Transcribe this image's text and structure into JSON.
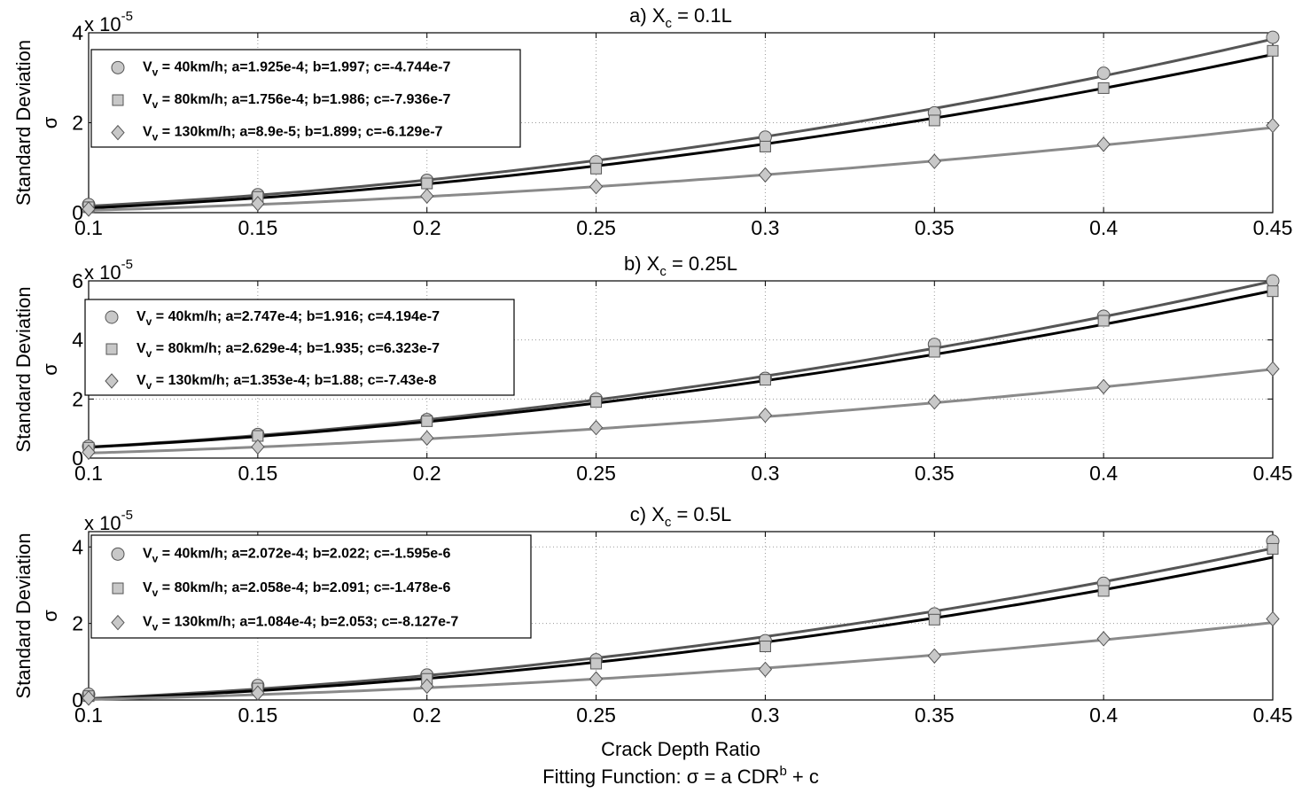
{
  "figure": {
    "xlabel": "Crack Depth Ratio",
    "footer": "Fitting Function: σ = a CDR",
    "footer_sup": "b",
    "footer_tail": " + c",
    "ylabel": "Standard Deviation",
    "ysymbol": "σ",
    "exp_base": "x 10",
    "exp_power": "-5"
  },
  "styles": {
    "series_colors": [
      "#555555",
      "#000000",
      "#8a8a8a"
    ],
    "marker_fill": "#c8c8c8",
    "marker_stroke": "#555555",
    "grid_color": "#9a9a9a"
  },
  "chart_data": [
    {
      "type": "line",
      "title_prefix": "a) X",
      "title_sub": "c",
      "title_suffix": " = 0.1L",
      "x": [
        0.1,
        0.15,
        0.2,
        0.25,
        0.3,
        0.35,
        0.4,
        0.45
      ],
      "xticks": [
        "0.1",
        "0.15",
        "0.2",
        "0.25",
        "0.3",
        "0.35",
        "0.4",
        "0.45"
      ],
      "xlim": [
        0.1,
        0.45
      ],
      "ylim": [
        0,
        4
      ],
      "yticks": [
        0,
        2,
        4
      ],
      "y_exponent": -5,
      "series": [
        {
          "label_pre": "V",
          "label_sub": "v",
          "label_post": " = 40km/h; a=1.925e-4; b=1.997; c=-4.744e-7",
          "marker": "circle",
          "a": 0.0001925,
          "b": 1.997,
          "c": -4.744e-07,
          "values": [
            0.18,
            0.4,
            0.72,
            1.13,
            1.68,
            2.22,
            3.1,
            3.9
          ]
        },
        {
          "label_pre": "V",
          "label_sub": "v",
          "label_post": " = 80km/h; a=1.756e-4; b=1.986; c=-7.936e-7",
          "marker": "square",
          "a": 0.0001756,
          "b": 1.986,
          "c": -7.936e-07,
          "values": [
            0.12,
            0.35,
            0.65,
            0.98,
            1.47,
            2.05,
            2.77,
            3.6
          ]
        },
        {
          "label_pre": "V",
          "label_sub": "v",
          "label_post": " = 130km/h; a=8.9e-5; b=1.899; c=-6.129e-7",
          "marker": "diamond",
          "a": 8.9e-05,
          "b": 1.899,
          "c": -6.129e-07,
          "values": [
            0.08,
            0.2,
            0.37,
            0.58,
            0.84,
            1.14,
            1.52,
            1.94
          ]
        }
      ]
    },
    {
      "type": "line",
      "title_prefix": "b) X",
      "title_sub": "c",
      "title_suffix": " = 0.25L",
      "x": [
        0.1,
        0.15,
        0.2,
        0.25,
        0.3,
        0.35,
        0.4,
        0.45
      ],
      "xticks": [
        "0.1",
        "0.15",
        "0.2",
        "0.25",
        "0.3",
        "0.35",
        "0.4",
        "0.45"
      ],
      "xlim": [
        0.1,
        0.45
      ],
      "ylim": [
        0,
        6
      ],
      "yticks": [
        0,
        2,
        4,
        6
      ],
      "y_exponent": -5,
      "series": [
        {
          "label_pre": "V",
          "label_sub": "v",
          "label_post": " = 40km/h; a=2.747e-4; b=1.916; c=4.194e-7",
          "marker": "circle",
          "a": 0.0002747,
          "b": 1.916,
          "c": 4.194e-07,
          "values": [
            0.4,
            0.8,
            1.3,
            2.0,
            2.7,
            3.85,
            4.8,
            6.0
          ]
        },
        {
          "label_pre": "V",
          "label_sub": "v",
          "label_post": " = 80km/h; a=2.629e-4; b=1.935; c=6.323e-7",
          "marker": "square",
          "a": 0.0002629,
          "b": 1.935,
          "c": 6.323e-07,
          "values": [
            0.35,
            0.75,
            1.25,
            1.9,
            2.65,
            3.6,
            4.65,
            5.65
          ]
        },
        {
          "label_pre": "V",
          "label_sub": "v",
          "label_post": " = 130km/h; a=1.353e-4; b=1.88; c=-7.43e-8",
          "marker": "diamond",
          "a": 0.0001353,
          "b": 1.88,
          "c": -7.43e-08,
          "values": [
            0.2,
            0.38,
            0.68,
            1.03,
            1.45,
            1.9,
            2.42,
            3.02
          ]
        }
      ]
    },
    {
      "type": "line",
      "title_prefix": "c) X",
      "title_sub": "c",
      "title_suffix": " = 0.5L",
      "x": [
        0.1,
        0.15,
        0.2,
        0.25,
        0.3,
        0.35,
        0.4,
        0.45
      ],
      "xticks": [
        "0.1",
        "0.15",
        "0.2",
        "0.25",
        "0.3",
        "0.35",
        "0.4",
        "0.45"
      ],
      "xlim": [
        0.1,
        0.45
      ],
      "ylim": [
        0,
        4.4
      ],
      "yticks": [
        0,
        2,
        4
      ],
      "y_exponent": -5,
      "series": [
        {
          "label_pre": "V",
          "label_sub": "v",
          "label_post": " = 40km/h; a=2.072e-4; b=2.022; c=-1.595e-6",
          "marker": "circle",
          "a": 0.0002072,
          "b": 2.022,
          "c": -1.595e-06,
          "values": [
            0.15,
            0.38,
            0.65,
            1.05,
            1.55,
            2.25,
            3.05,
            4.15
          ]
        },
        {
          "label_pre": "V",
          "label_sub": "v",
          "label_post": " = 80km/h; a=2.058e-4; b=2.091; c=-1.478e-6",
          "marker": "square",
          "a": 0.0002058,
          "b": 2.091,
          "c": -1.478e-06,
          "values": [
            0.1,
            0.3,
            0.55,
            0.95,
            1.4,
            2.1,
            2.85,
            3.95
          ]
        },
        {
          "label_pre": "V",
          "label_sub": "v",
          "label_post": " = 130km/h; a=1.084e-4; b=2.053; c=-8.127e-7",
          "marker": "diamond",
          "a": 0.0001084,
          "b": 2.053,
          "c": -8.127e-07,
          "values": [
            0.05,
            0.18,
            0.36,
            0.55,
            0.8,
            1.15,
            1.6,
            2.12
          ]
        }
      ]
    }
  ]
}
